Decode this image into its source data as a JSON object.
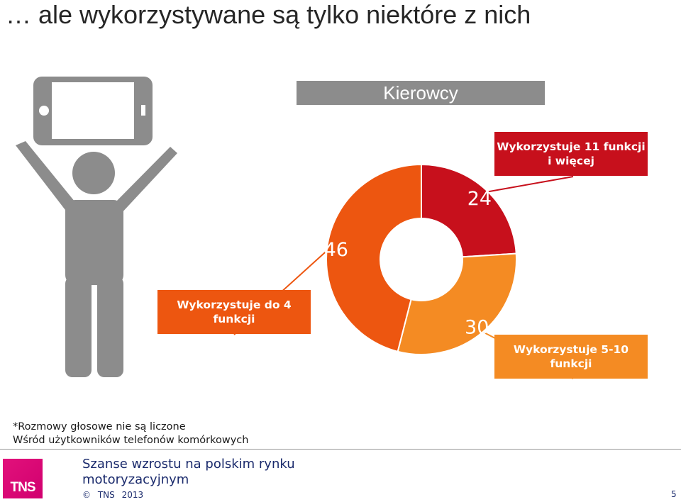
{
  "slide": {
    "title": "… ale wykorzystywane są tylko niektóre z nich",
    "segment": "Kierowcy"
  },
  "chart_data": {
    "type": "pie",
    "donut": true,
    "segments": [
      {
        "label": "Wykorzystuje 11 funkcji i więcej",
        "value": 24,
        "color": "#c7101c"
      },
      {
        "label": "Wykorzystuje 5-10 funkcji",
        "value": 30,
        "color": "#f48b23"
      },
      {
        "label": "Wykorzystuje do 4 funkcji",
        "value": 46,
        "color": "#ed5610"
      }
    ]
  },
  "callouts": {
    "top": "Wykorzystuje 11 funkcji i więcej",
    "right": "Wykorzystuje 5-10 funkcji",
    "left": "Wykorzystuje do 4 funkcji"
  },
  "footnote": {
    "line1": "*Rozmowy głosowe nie są liczone",
    "line2": "Wśród użytkowników telefonów komórkowych"
  },
  "footer": {
    "logo_text": "TNS",
    "report_title_line1": "Szanse wzrostu na polskim rynku",
    "report_title_line2": "motoryzacyjnym",
    "copyright_symbol": "©",
    "copyright_owner": "TNS",
    "copyright_year": "2013",
    "page_number": "5"
  },
  "icons": {
    "figure": "person-holding-phone-icon",
    "logo": "tns-logo"
  }
}
